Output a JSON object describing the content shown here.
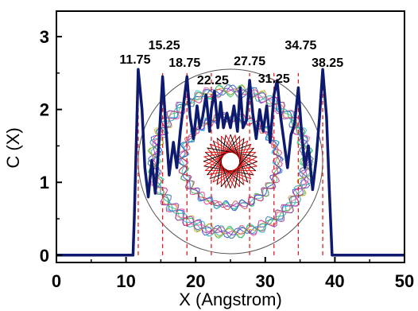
{
  "chart_data": {
    "type": "line",
    "xlabel": "X (Angstrom)",
    "ylabel": "C (X)",
    "xlim": [
      0,
      50
    ],
    "ylim": [
      -0.1,
      3.35
    ],
    "xticks": [
      0,
      10,
      20,
      30,
      40,
      50
    ],
    "yticks": [
      0,
      1,
      2,
      3
    ],
    "grid": false,
    "line_color": "#0d1a6e",
    "marker_color": "#e02020",
    "series": [
      {
        "x": [
          0,
          11,
          11.2,
          11.75,
          12.3,
          12.7,
          13.2,
          13.7,
          14.2,
          14.7,
          15.25,
          15.7,
          16.2,
          16.8,
          17.3,
          17.8,
          18.3,
          18.75,
          19.2,
          19.7,
          20.2,
          20.6,
          21.0,
          21.5,
          22.0,
          22.25,
          22.7,
          23.2,
          23.6,
          24.0,
          24.5,
          25.0,
          25.5,
          26.0,
          26.4,
          26.8,
          27.3,
          27.75,
          28.2,
          28.7,
          29.2,
          29.7,
          30.2,
          30.7,
          31.25,
          31.7,
          32.2,
          32.7,
          33.2,
          33.7,
          34.2,
          34.75,
          35.2,
          35.7,
          36.2,
          36.8,
          37.3,
          37.8,
          38.25,
          38.8,
          39.2,
          39.6,
          50
        ],
        "y": [
          0,
          0,
          0.55,
          2.55,
          2.0,
          1.2,
          0.8,
          1.3,
          0.85,
          1.5,
          2.45,
          1.8,
          1.1,
          1.55,
          1.2,
          1.7,
          2.1,
          2.45,
          1.9,
          1.6,
          2.05,
          1.75,
          1.9,
          2.2,
          1.7,
          2.0,
          2.25,
          1.75,
          2.1,
          1.75,
          1.95,
          1.75,
          2.05,
          1.7,
          2.3,
          1.75,
          1.85,
          2.4,
          1.95,
          1.6,
          2.0,
          1.7,
          2.05,
          1.55,
          2.2,
          2.4,
          1.9,
          1.55,
          1.2,
          1.65,
          1.8,
          2.3,
          1.7,
          1.2,
          1.5,
          0.9,
          1.3,
          1.9,
          2.55,
          1.9,
          0.9,
          0,
          0
        ]
      }
    ],
    "peaks": [
      11.75,
      15.25,
      18.75,
      22.25,
      27.75,
      31.25,
      34.75,
      38.25
    ],
    "annotations": [
      "11.75",
      "15.25",
      "18.75",
      "22.25",
      "27.75",
      "31.25",
      "34.75",
      "38.25"
    ]
  }
}
